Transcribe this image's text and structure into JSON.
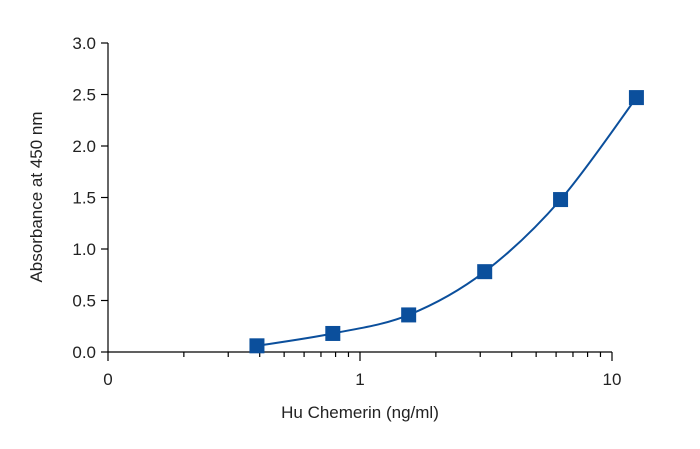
{
  "chart_data": {
    "type": "scatter",
    "title": "",
    "xlabel": "Hu Chemerin (ng/ml)",
    "ylabel": "Absorbance at 450 nm",
    "x_scale": "log",
    "x_tick_labels": [
      "0",
      "1",
      "10"
    ],
    "y_ticks": [
      0.0,
      0.5,
      1.0,
      1.5,
      2.0,
      2.5,
      3.0
    ],
    "y_tick_labels": [
      "0.0",
      "0.5",
      "1.0",
      "1.5",
      "2.0",
      "2.5",
      "3.0"
    ],
    "ylim": [
      0,
      3.0
    ],
    "grid": false,
    "legend": "none",
    "marker": "square",
    "series_color": "#0b4f9c",
    "series": [
      {
        "x": [
          0.39,
          0.78,
          1.56,
          3.125,
          6.25,
          12.5
        ],
        "y": [
          0.06,
          0.18,
          0.36,
          0.78,
          1.48,
          2.47
        ]
      }
    ]
  }
}
